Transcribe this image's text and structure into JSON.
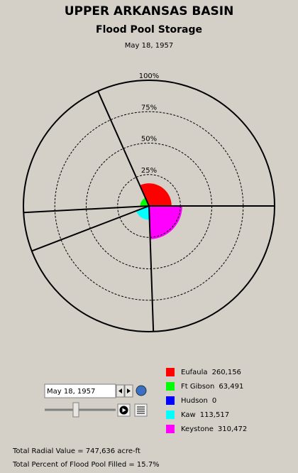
{
  "chart_data": {
    "type": "polar-area",
    "title": "UPPER ARKANSAS BASIN",
    "subtitle": "Flood Pool Storage",
    "date": "May 18, 1957",
    "rlim": [
      0,
      100
    ],
    "rticks": [
      {
        "value": 25,
        "label": "25%"
      },
      {
        "value": 50,
        "label": "50%"
      },
      {
        "value": 75,
        "label": "75%"
      },
      {
        "value": 100,
        "label": "100%"
      }
    ],
    "series": [
      {
        "name": "Eufaula",
        "color": "#ff0000",
        "value": 260156,
        "value_label": "260,156",
        "percent": 18,
        "span": 114
      },
      {
        "name": "Keystone",
        "color": "#ff00ff",
        "value": 310472,
        "value_label": "310,472",
        "percent": 26.5,
        "span": 88
      },
      {
        "name": "Kaw",
        "color": "#00ffff",
        "value": 113517,
        "value_label": "113,517",
        "percent": 11,
        "span": 71
      },
      {
        "name": "Hudson",
        "color": "#0000ff",
        "value": 0,
        "percent": 0,
        "span": 18
      },
      {
        "name": "Ft Gibson",
        "color": "#00ff00",
        "value": 63491,
        "value_label": "63,491",
        "percent": 7,
        "span": 69
      }
    ],
    "legend_order": [
      0,
      4,
      3,
      2,
      1
    ],
    "footer": [
      "Total Radial Value =  747,636 acre-ft",
      "Total Percent of Flood Pool Filled =  15.7%"
    ]
  }
}
